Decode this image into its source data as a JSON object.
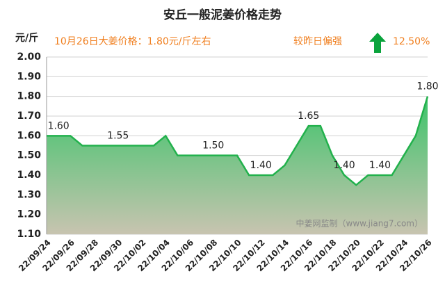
{
  "chart_data": {
    "type": "area",
    "title": "安丘一般泥姜价格走势",
    "y_label": "元/斤",
    "annotations": [
      "10月26日大姜价格：1.80元/斤左右",
      "较昨日偏强",
      "12.50%"
    ],
    "watermark": "中姜网监制（www.jiang7.com）",
    "categories": [
      "22/09/24",
      null,
      "22/09/26",
      null,
      "22/09/28",
      null,
      "22/09/30",
      null,
      "22/10/02",
      null,
      "22/10/04",
      null,
      "22/10/06",
      null,
      "22/10/08",
      null,
      "22/10/10",
      null,
      "22/10/12",
      null,
      "22/10/14",
      null,
      "22/10/16",
      null,
      "22/10/18",
      null,
      "22/10/20",
      null,
      "22/10/22",
      null,
      "22/10/24",
      null,
      "22/10/26"
    ],
    "values": [
      1.6,
      1.6,
      1.6,
      1.55,
      1.55,
      1.55,
      1.55,
      1.55,
      1.55,
      1.55,
      1.6,
      1.5,
      1.5,
      1.5,
      1.5,
      1.5,
      1.5,
      1.4,
      1.4,
      1.4,
      1.45,
      1.55,
      1.65,
      1.65,
      1.5,
      1.4,
      1.35,
      1.4,
      1.4,
      1.4,
      1.5,
      1.6,
      1.8
    ],
    "value_labels": [
      null,
      "1.60",
      null,
      null,
      null,
      null,
      "1.55",
      null,
      null,
      null,
      null,
      null,
      null,
      null,
      "1.50",
      null,
      null,
      null,
      "1.40",
      null,
      null,
      null,
      "1.65",
      null,
      null,
      "1.40",
      null,
      null,
      "1.40",
      null,
      null,
      null,
      "1.80"
    ],
    "color": "#22b14c",
    "ylim": [
      1.1,
      2.0
    ],
    "yticks": [
      {
        "value": 1.1,
        "label": "1.10"
      },
      {
        "value": 1.2,
        "label": "1.20"
      },
      {
        "value": 1.3,
        "label": "1.30"
      },
      {
        "value": 1.4,
        "label": "1.40"
      },
      {
        "value": 1.5,
        "label": "1.50"
      },
      {
        "value": 1.6,
        "label": "1.60"
      },
      {
        "value": 1.7,
        "label": "1.70"
      },
      {
        "value": 1.8,
        "label": "1.80"
      },
      {
        "value": 1.9,
        "label": "1.90"
      },
      {
        "value": 2.0,
        "label": "2.00"
      }
    ],
    "grid": true
  }
}
